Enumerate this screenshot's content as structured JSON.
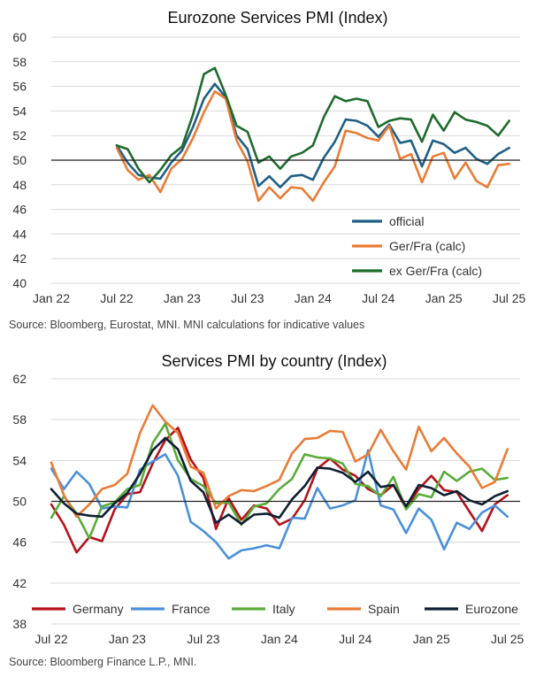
{
  "chart_data": [
    {
      "type": "line",
      "title": "Eurozone Services PMI (Index)",
      "source": "Source: Bloomberg, Eurostat, MNI.  MNI calculations for indicative values",
      "ylim": [
        40,
        60
      ],
      "yticks": [
        40,
        42,
        44,
        46,
        48,
        50,
        52,
        54,
        56,
        58,
        60
      ],
      "xticks": [
        "Jan 22",
        "Jul 22",
        "Jan 23",
        "Jul 23",
        "Jan 24",
        "Jul 24",
        "Jan 25",
        "Jul 25"
      ],
      "x_start": "Jan 22",
      "x_end": "Aug 25",
      "reference_line": 50,
      "grid": true,
      "legend_position": "bottom-right",
      "x": [
        "Jul 22",
        "Aug 22",
        "Sep 22",
        "Oct 22",
        "Nov 22",
        "Dec 22",
        "Jan 23",
        "Feb 23",
        "Mar 23",
        "Apr 23",
        "May 23",
        "Jun 23",
        "Jul 23",
        "Aug 23",
        "Sep 23",
        "Oct 23",
        "Nov 23",
        "Dec 23",
        "Jan 24",
        "Feb 24",
        "Mar 24",
        "Apr 24",
        "May 24",
        "Jun 24",
        "Jul 24",
        "Aug 24",
        "Sep 24",
        "Oct 24",
        "Nov 24",
        "Dec 24",
        "Jan 25",
        "Feb 25",
        "Mar 25",
        "Apr 25",
        "May 25",
        "Jun 25",
        "Jul 25"
      ],
      "series": [
        {
          "name": "official",
          "color": "#1f5f85",
          "values": [
            51.2,
            49.8,
            48.8,
            48.6,
            48.5,
            49.8,
            50.8,
            52.7,
            55.0,
            56.2,
            55.1,
            52.0,
            50.9,
            47.9,
            48.7,
            47.8,
            48.7,
            48.8,
            48.4,
            50.2,
            51.5,
            53.3,
            53.2,
            52.8,
            51.9,
            52.9,
            51.4,
            51.6,
            49.5,
            51.6,
            51.3,
            50.6,
            51.0,
            50.1,
            49.7,
            50.5,
            51.0
          ]
        },
        {
          "name": "Ger/Fra (calc)",
          "color": "#e97c36",
          "values": [
            51.0,
            49.2,
            48.4,
            48.8,
            47.4,
            49.3,
            50.1,
            51.8,
            53.9,
            55.6,
            55.0,
            51.6,
            49.9,
            46.7,
            47.8,
            46.9,
            47.8,
            47.7,
            46.7,
            48.2,
            49.5,
            52.4,
            52.2,
            51.8,
            51.6,
            52.8,
            50.1,
            50.5,
            48.2,
            50.3,
            50.6,
            48.5,
            49.8,
            48.3,
            47.8,
            49.6,
            49.7
          ]
        },
        {
          "name": "ex Ger/Fra (calc)",
          "color": "#1e6b2c",
          "values": [
            51.2,
            50.9,
            49.3,
            48.2,
            49.2,
            50.4,
            51.1,
            53.7,
            57.0,
            57.5,
            55.3,
            52.8,
            52.3,
            49.8,
            50.3,
            49.3,
            50.3,
            50.6,
            51.2,
            53.5,
            55.2,
            54.8,
            55.0,
            54.8,
            52.7,
            53.2,
            53.4,
            53.3,
            51.5,
            53.7,
            52.4,
            53.9,
            53.3,
            53.1,
            52.8,
            52.0,
            53.2
          ]
        }
      ]
    },
    {
      "type": "line",
      "title": "Services PMI by country (Index)",
      "source": "Source: Bloomberg Finance L.P., MNI.",
      "ylim": [
        38,
        62
      ],
      "yticks": [
        38,
        42,
        46,
        50,
        54,
        58,
        62
      ],
      "xticks": [
        "Jul 22",
        "Jan 23",
        "Jul 23",
        "Jan 24",
        "Jul 24",
        "Jan 25",
        "Jul 25"
      ],
      "x_start": "Jul 22",
      "x_end": "Aug 25",
      "reference_line": 50,
      "grid": true,
      "legend_position": "bottom",
      "x": [
        "Jul 22",
        "Aug 22",
        "Sep 22",
        "Oct 22",
        "Nov 22",
        "Dec 22",
        "Jan 23",
        "Feb 23",
        "Mar 23",
        "Apr 23",
        "May 23",
        "Jun 23",
        "Jul 23",
        "Aug 23",
        "Sep 23",
        "Oct 23",
        "Nov 23",
        "Dec 23",
        "Jan 24",
        "Feb 24",
        "Mar 24",
        "Apr 24",
        "May 24",
        "Jun 24",
        "Jul 24",
        "Aug 24",
        "Sep 24",
        "Oct 24",
        "Nov 24",
        "Dec 24",
        "Jan 25",
        "Feb 25",
        "Mar 25",
        "Apr 25",
        "May 25",
        "Jun 25",
        "Jul 25"
      ],
      "series": [
        {
          "name": "Germany",
          "color": "#b5121b",
          "values": [
            49.7,
            47.7,
            45.0,
            46.5,
            46.1,
            49.2,
            50.7,
            50.9,
            53.7,
            56.0,
            57.2,
            54.1,
            52.3,
            47.3,
            50.3,
            48.2,
            49.6,
            49.3,
            47.7,
            48.3,
            50.1,
            53.2,
            54.2,
            53.1,
            52.5,
            51.2,
            50.6,
            51.6,
            49.3,
            51.2,
            52.5,
            51.1,
            50.9,
            49.0,
            47.1,
            49.7,
            50.6
          ]
        },
        {
          "name": "France",
          "color": "#4a90d9",
          "values": [
            53.2,
            51.2,
            52.9,
            51.7,
            49.3,
            49.5,
            49.4,
            53.1,
            53.9,
            54.6,
            52.5,
            48.0,
            47.1,
            46.0,
            44.4,
            45.2,
            45.4,
            45.7,
            45.4,
            48.4,
            48.3,
            51.3,
            49.3,
            49.6,
            50.1,
            55.0,
            49.6,
            49.2,
            46.9,
            49.3,
            48.2,
            45.3,
            47.9,
            47.3,
            48.9,
            49.6,
            48.5
          ]
        },
        {
          "name": "Italy",
          "color": "#5aac3a",
          "values": [
            48.4,
            50.5,
            48.8,
            46.4,
            49.5,
            49.9,
            51.2,
            51.6,
            55.7,
            57.6,
            54.0,
            52.2,
            51.5,
            49.8,
            49.9,
            47.7,
            49.5,
            49.8,
            51.2,
            52.2,
            54.6,
            54.3,
            54.2,
            53.7,
            51.7,
            51.5,
            50.5,
            52.4,
            49.2,
            50.7,
            50.4,
            52.9,
            52.0,
            52.9,
            53.2,
            52.1,
            52.3
          ]
        },
        {
          "name": "Spain",
          "color": "#e97c36",
          "values": [
            53.8,
            50.6,
            48.5,
            49.7,
            51.2,
            51.6,
            52.7,
            56.7,
            59.4,
            57.8,
            56.7,
            53.4,
            52.8,
            49.3,
            50.5,
            51.1,
            51.0,
            51.5,
            52.1,
            54.7,
            56.1,
            56.2,
            56.9,
            56.8,
            53.9,
            54.6,
            57.0,
            54.9,
            53.1,
            57.3,
            54.9,
            56.2,
            54.7,
            53.4,
            51.3,
            51.9,
            55.1
          ]
        },
        {
          "name": "Eurozone",
          "color": "#0f1f33",
          "values": [
            51.2,
            49.8,
            48.8,
            48.6,
            48.5,
            49.8,
            50.8,
            52.7,
            55.0,
            56.2,
            55.1,
            52.0,
            50.9,
            47.9,
            48.7,
            47.8,
            48.7,
            48.8,
            48.4,
            50.2,
            51.5,
            53.3,
            53.2,
            52.8,
            51.9,
            52.9,
            51.4,
            51.6,
            49.5,
            51.6,
            51.3,
            50.6,
            51.0,
            50.1,
            49.7,
            50.5,
            51.0
          ]
        }
      ]
    }
  ]
}
